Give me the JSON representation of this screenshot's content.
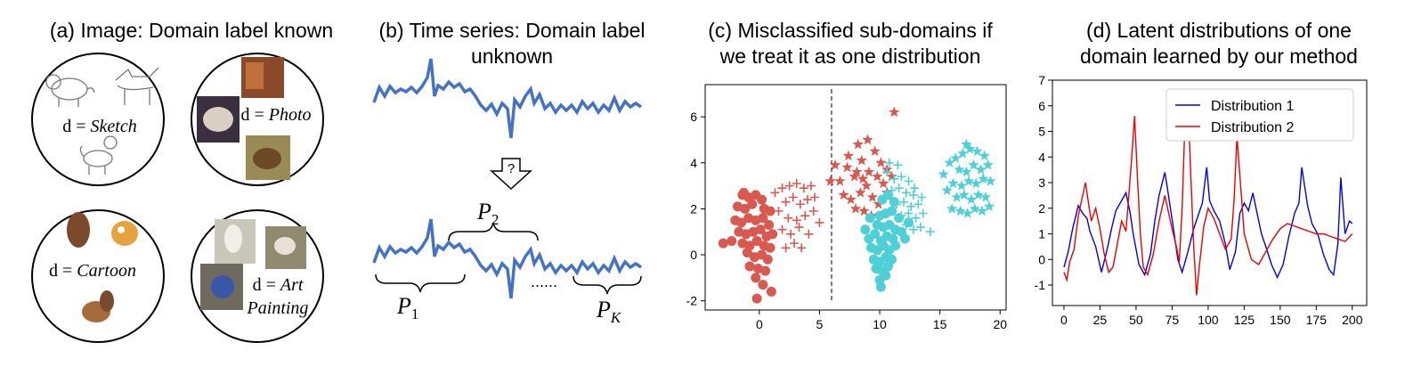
{
  "panels": {
    "a": {
      "title": "(a) Image: Domain label known",
      "circles": [
        {
          "prefix": "d = ",
          "domain": "Sketch"
        },
        {
          "prefix": "d = ",
          "domain": "Photo"
        },
        {
          "prefix": "d = ",
          "domain": "Cartoon"
        },
        {
          "prefix": "d = ",
          "domain": "Art",
          "domain2": "Painting"
        }
      ]
    },
    "b": {
      "title_line1": "(b) Time series: Domain label",
      "title_line2": "unknown",
      "question_mark": "?",
      "labels": {
        "p1_base": "P",
        "p1_sub": "1",
        "p2_base": "P",
        "p2_sub": "2",
        "pk_base": "P",
        "pk_sub": "K",
        "ellipsis": "......"
      }
    },
    "c": {
      "title_line1": "(c) Misclassified sub-domains if",
      "title_line2": "we treat it as one distribution"
    },
    "d": {
      "title_line1": "(d) Latent distributions of one",
      "title_line2": "domain learned by our method"
    }
  },
  "colors": {
    "series_blue": "#0000ee",
    "series_red": "#ee0000",
    "scatter_red": "#d9584f",
    "scatter_cyan": "#4fcfd6",
    "ts_blue": "#4472c4"
  },
  "chart_data": [
    {
      "type": "scatter",
      "title": "(c) Misclassified sub-domains if we treat it as one distribution",
      "xlim": [
        -4.5,
        20.5
      ],
      "ylim": [
        -2.4,
        7.4
      ],
      "xticks": [
        0,
        5,
        10,
        15,
        20
      ],
      "yticks": [
        -2,
        0,
        2,
        4,
        6
      ],
      "vline_x": 6,
      "grid": false,
      "groups": [
        {
          "color": "scatter_red",
          "marker": "circle",
          "points": [
            [
              -1.4,
              2.6
            ],
            [
              -0.9,
              2.5
            ],
            [
              -0.3,
              2.6
            ],
            [
              0.2,
              2.4
            ],
            [
              -1.8,
              2.1
            ],
            [
              -1.2,
              2.0
            ],
            [
              -0.6,
              2.2
            ],
            [
              0.4,
              2.0
            ],
            [
              0.9,
              1.9
            ],
            [
              -2.0,
              1.5
            ],
            [
              -1.5,
              1.4
            ],
            [
              -0.9,
              1.6
            ],
            [
              -0.3,
              1.5
            ],
            [
              0.3,
              1.6
            ],
            [
              0.8,
              1.3
            ],
            [
              -1.7,
              1.0
            ],
            [
              -1.1,
              0.9
            ],
            [
              -0.5,
              1.0
            ],
            [
              0.1,
              1.1
            ],
            [
              0.6,
              0.8
            ],
            [
              1.1,
              0.9
            ],
            [
              -2.3,
              0.6
            ],
            [
              -1.4,
              0.5
            ],
            [
              -0.8,
              0.4
            ],
            [
              -0.2,
              0.6
            ],
            [
              0.4,
              0.4
            ],
            [
              0.9,
              0.3
            ],
            [
              -1.0,
              0.1
            ],
            [
              -0.4,
              -0.1
            ],
            [
              0.2,
              0.0
            ],
            [
              0.7,
              -0.2
            ],
            [
              -0.8,
              -0.5
            ],
            [
              -0.1,
              -0.6
            ],
            [
              0.5,
              -0.7
            ],
            [
              -0.3,
              -1.0
            ],
            [
              0.3,
              -1.3
            ],
            [
              1.0,
              -1.6
            ],
            [
              -0.2,
              -1.9
            ],
            [
              -3.0,
              0.5
            ],
            [
              -1.3,
              2.7
            ]
          ]
        },
        {
          "color": "scatter_red",
          "marker": "plus",
          "points": [
            [
              1.3,
              2.7
            ],
            [
              1.9,
              2.9
            ],
            [
              2.5,
              3.0
            ],
            [
              3.1,
              3.1
            ],
            [
              3.7,
              2.9
            ],
            [
              4.3,
              3.0
            ],
            [
              2.2,
              2.3
            ],
            [
              2.8,
              2.5
            ],
            [
              3.4,
              2.2
            ],
            [
              4.0,
              2.4
            ],
            [
              1.6,
              1.9
            ],
            [
              2.4,
              1.6
            ],
            [
              3.1,
              1.5
            ],
            [
              3.8,
              1.7
            ],
            [
              4.5,
              1.9
            ],
            [
              1.9,
              1.1
            ],
            [
              2.6,
              0.9
            ],
            [
              3.3,
              1.2
            ],
            [
              4.1,
              0.9
            ],
            [
              2.9,
              0.5
            ],
            [
              3.5,
              0.3
            ],
            [
              2.2,
              0.3
            ],
            [
              4.6,
              2.5
            ],
            [
              5.0,
              1.4
            ]
          ]
        },
        {
          "color": "scatter_red",
          "marker": "star",
          "points": [
            [
              6.7,
              3.2
            ],
            [
              7.3,
              3.8
            ],
            [
              7.9,
              3.4
            ],
            [
              8.5,
              4.1
            ],
            [
              9.1,
              3.6
            ],
            [
              9.6,
              4.5
            ],
            [
              10.1,
              4.0
            ],
            [
              8.2,
              4.8
            ],
            [
              9.0,
              5.0
            ],
            [
              7.0,
              2.6
            ],
            [
              7.6,
              2.4
            ],
            [
              8.4,
              2.7
            ],
            [
              8.9,
              3.0
            ],
            [
              9.4,
              2.5
            ],
            [
              10.3,
              3.1
            ],
            [
              10.6,
              2.7
            ],
            [
              9.8,
              3.4
            ],
            [
              8.0,
              2.0
            ],
            [
              8.7,
              1.9
            ],
            [
              9.3,
              1.7
            ],
            [
              7.4,
              4.3
            ],
            [
              8.6,
              3.3
            ],
            [
              11.0,
              3.4
            ],
            [
              6.3,
              3.9
            ],
            [
              5.9,
              3.2
            ],
            [
              11.2,
              6.2
            ],
            [
              10.6,
              3.7
            ],
            [
              9.9,
              2.2
            ],
            [
              8.1,
              3.6
            ]
          ]
        },
        {
          "color": "scatter_cyan",
          "marker": "circle",
          "points": [
            [
              9.1,
              0.7
            ],
            [
              9.6,
              0.9
            ],
            [
              10.1,
              0.6
            ],
            [
              10.6,
              0.8
            ],
            [
              11.1,
              0.7
            ],
            [
              9.3,
              0.3
            ],
            [
              9.8,
              0.2
            ],
            [
              10.3,
              0.4
            ],
            [
              10.8,
              0.2
            ],
            [
              11.3,
              0.4
            ],
            [
              9.5,
              -0.2
            ],
            [
              10.0,
              -0.3
            ],
            [
              10.5,
              -0.1
            ],
            [
              11.0,
              -0.2
            ],
            [
              9.7,
              -0.6
            ],
            [
              10.2,
              -0.7
            ],
            [
              10.7,
              -0.5
            ],
            [
              10.0,
              -1.1
            ],
            [
              10.5,
              -0.9
            ],
            [
              9.8,
              1.3
            ],
            [
              10.3,
              1.2
            ],
            [
              10.8,
              1.3
            ],
            [
              11.3,
              1.1
            ],
            [
              11.8,
              1.0
            ],
            [
              12.1,
              0.7
            ],
            [
              10.0,
              1.7
            ],
            [
              10.5,
              1.8
            ],
            [
              11.0,
              1.9
            ],
            [
              10.2,
              2.4
            ],
            [
              10.7,
              2.6
            ],
            [
              11.2,
              2.3
            ],
            [
              8.8,
              1.1
            ],
            [
              9.2,
              1.6
            ],
            [
              12.4,
              1.4
            ],
            [
              11.6,
              1.6
            ],
            [
              10.1,
              -1.4
            ]
          ]
        },
        {
          "color": "scatter_cyan",
          "marker": "plus",
          "points": [
            [
              10.6,
              3.6
            ],
            [
              11.2,
              3.3
            ],
            [
              11.8,
              3.4
            ],
            [
              12.4,
              3.2
            ],
            [
              11.0,
              2.8
            ],
            [
              11.6,
              2.9
            ],
            [
              12.2,
              2.7
            ],
            [
              12.8,
              2.6
            ],
            [
              11.4,
              2.2
            ],
            [
              12.0,
              2.3
            ],
            [
              12.6,
              2.1
            ],
            [
              13.2,
              2.2
            ],
            [
              11.8,
              1.7
            ],
            [
              12.4,
              1.8
            ],
            [
              13.0,
              1.6
            ],
            [
              13.6,
              1.8
            ],
            [
              12.2,
              1.3
            ],
            [
              12.8,
              1.1
            ],
            [
              13.4,
              1.2
            ],
            [
              14.2,
              1.0
            ],
            [
              10.8,
              4.0
            ],
            [
              12.9,
              2.9
            ],
            [
              13.5,
              2.5
            ],
            [
              11.5,
              3.9
            ]
          ]
        },
        {
          "color": "scatter_cyan",
          "marker": "star",
          "points": [
            [
              16.3,
              4.2
            ],
            [
              16.9,
              4.4
            ],
            [
              17.5,
              4.6
            ],
            [
              18.1,
              4.5
            ],
            [
              18.7,
              4.3
            ],
            [
              16.6,
              3.7
            ],
            [
              17.2,
              3.6
            ],
            [
              17.8,
              3.9
            ],
            [
              18.4,
              3.7
            ],
            [
              19.0,
              3.9
            ],
            [
              16.1,
              3.1
            ],
            [
              16.8,
              3.0
            ],
            [
              17.4,
              3.2
            ],
            [
              18.0,
              3.1
            ],
            [
              18.6,
              3.3
            ],
            [
              19.2,
              3.2
            ],
            [
              16.4,
              2.5
            ],
            [
              17.0,
              2.6
            ],
            [
              17.6,
              2.4
            ],
            [
              18.2,
              2.6
            ],
            [
              18.8,
              2.5
            ],
            [
              16.0,
              2.0
            ],
            [
              16.7,
              1.9
            ],
            [
              17.3,
              1.8
            ],
            [
              17.9,
              2.0
            ],
            [
              18.5,
              1.9
            ],
            [
              19.1,
              2.1
            ],
            [
              15.3,
              3.5
            ],
            [
              15.8,
              4.0
            ],
            [
              17.2,
              4.8
            ],
            [
              15.6,
              2.8
            ]
          ]
        }
      ]
    },
    {
      "type": "line",
      "title": "(d) Latent distributions of one domain learned by our method",
      "xlim": [
        -8,
        210
      ],
      "ylim": [
        -1.8,
        7.0
      ],
      "xticks": [
        0,
        25,
        50,
        75,
        100,
        125,
        150,
        175,
        200
      ],
      "yticks": [
        -1,
        0,
        1,
        2,
        3,
        4,
        5,
        6,
        7
      ],
      "legend": "top-right",
      "series": [
        {
          "name": "Distribution 1",
          "color": "series_blue",
          "x": [
            0,
            3,
            6,
            10,
            13,
            16,
            18,
            22,
            26,
            30,
            33,
            36,
            40,
            43,
            46,
            48,
            52,
            56,
            60,
            63,
            66,
            70,
            72,
            76,
            79,
            82,
            86,
            90,
            93,
            96,
            99,
            101,
            104,
            108,
            112,
            115,
            119,
            122,
            125,
            128,
            131,
            134,
            137,
            140,
            144,
            148,
            152,
            156,
            160,
            163,
            165,
            169,
            172,
            176,
            180,
            184,
            187,
            190,
            192,
            195,
            198,
            200
          ],
          "values": [
            -0.3,
            0.3,
            1.2,
            2.1,
            1.8,
            1.6,
            1.1,
            0.5,
            -0.5,
            0.4,
            1.2,
            1.9,
            2.3,
            2.6,
            1.8,
            1.0,
            -0.2,
            -0.6,
            0.2,
            1.5,
            2.5,
            3.4,
            2.7,
            1.2,
            0.0,
            -0.5,
            0.3,
            1.2,
            1.7,
            2.2,
            3.6,
            2.3,
            1.9,
            1.5,
            0.6,
            -0.4,
            0.3,
            1.8,
            2.2,
            1.9,
            2.6,
            1.8,
            1.0,
            0.5,
            -0.2,
            -0.7,
            -0.2,
            0.9,
            1.8,
            2.2,
            3.6,
            2.1,
            1.4,
            1.0,
            0.2,
            -0.4,
            -0.6,
            0.6,
            3.2,
            1.0,
            1.5,
            1.4
          ]
        },
        {
          "name": "Distribution 2",
          "color": "series_red",
          "x": [
            0,
            2,
            4,
            7,
            10,
            13,
            15,
            17,
            19,
            22,
            25,
            28,
            31,
            34,
            37,
            40,
            43,
            45,
            47,
            49,
            51,
            53,
            55,
            58,
            62,
            66,
            70,
            73,
            75,
            78,
            80,
            82,
            84,
            86,
            88,
            90,
            92,
            94,
            97,
            100,
            104,
            108,
            112,
            116,
            118,
            120,
            122,
            125,
            130,
            135,
            140,
            145,
            150,
            155,
            160,
            165,
            170,
            175,
            180,
            185,
            190,
            195,
            200
          ],
          "values": [
            -0.5,
            -0.8,
            -0.1,
            0.4,
            1.7,
            2.5,
            3.0,
            2.2,
            1.5,
            2.0,
            1.2,
            0.2,
            -0.5,
            -0.3,
            0.6,
            1.5,
            1.1,
            2.5,
            4.0,
            5.6,
            3.2,
            1.0,
            -0.3,
            -0.6,
            0.2,
            1.5,
            2.5,
            1.7,
            1.2,
            0.5,
            -0.1,
            2.0,
            5.5,
            6.2,
            3.3,
            0.5,
            -1.4,
            -0.2,
            1.3,
            2.0,
            1.6,
            1.0,
            0.4,
            0.8,
            2.3,
            4.8,
            3.3,
            1.0,
            0.0,
            -0.2,
            0.3,
            0.8,
            1.2,
            1.4,
            1.3,
            1.2,
            1.1,
            1.0,
            1.0,
            0.9,
            0.8,
            0.7,
            1.0
          ]
        }
      ]
    }
  ]
}
